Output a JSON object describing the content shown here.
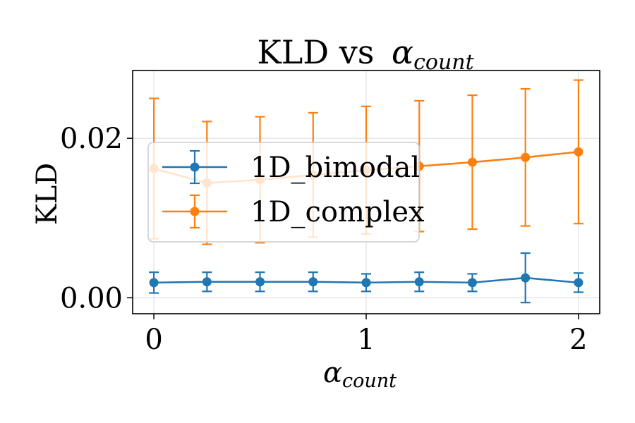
{
  "chart_data": {
    "type": "line",
    "title": "KLD vs",
    "title_math": {
      "base": "α",
      "sub": "count"
    },
    "xlabel_math": {
      "base": "α",
      "sub": "count"
    },
    "ylabel": "KLD",
    "x": [
      0,
      0.25,
      0.5,
      0.75,
      1.0,
      1.25,
      1.5,
      1.75,
      2.0
    ],
    "xlim": [
      -0.1,
      2.1
    ],
    "ylim": [
      -0.002,
      0.0285
    ],
    "xticks": [
      0,
      1,
      2
    ],
    "xtick_labels": [
      "0",
      "1",
      "2"
    ],
    "yticks": [
      0.0,
      0.02
    ],
    "ytick_labels": [
      "0.00",
      "0.02"
    ],
    "grid": true,
    "legend_position": "upper-left",
    "series": [
      {
        "name": "1D_bimodal",
        "color": "#1f77b4",
        "values": [
          0.0019,
          0.002,
          0.002,
          0.002,
          0.0019,
          0.002,
          0.0019,
          0.0025,
          0.0019
        ],
        "errors": [
          0.0013,
          0.0012,
          0.0012,
          0.0012,
          0.0011,
          0.0012,
          0.0011,
          0.0031,
          0.0012
        ]
      },
      {
        "name": "1D_complex",
        "color": "#ff7f0e",
        "values": [
          0.0162,
          0.0144,
          0.0148,
          0.0154,
          0.016,
          0.0165,
          0.017,
          0.0176,
          0.0183
        ],
        "errors": [
          0.0088,
          0.0077,
          0.0079,
          0.0078,
          0.008,
          0.0082,
          0.0084,
          0.0086,
          0.009
        ]
      }
    ]
  }
}
